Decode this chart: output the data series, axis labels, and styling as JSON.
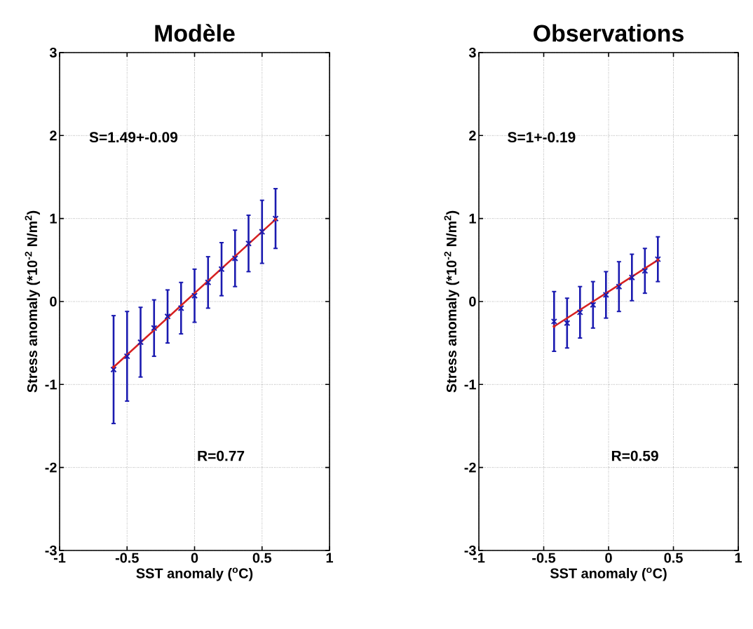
{
  "chart_data": [
    {
      "type": "scatter",
      "title": "Modèle",
      "xlabel": "SST anomaly ($^{o}$C)",
      "ylabel": "Stress anomaly (*10$^{-2}$ N/m$^{2}$)",
      "x": [
        -0.6,
        -0.5,
        -0.4,
        -0.3,
        -0.2,
        -0.1,
        0,
        0.1,
        0.2,
        0.3,
        0.4,
        0.5,
        0.6
      ],
      "xlim": [
        -1,
        1
      ],
      "ylim": [
        -3,
        3
      ],
      "xticks": [
        -1,
        -0.5,
        0,
        0.5,
        1
      ],
      "yticks": [
        -3,
        -2,
        -1,
        0,
        1,
        2,
        3
      ],
      "grid": true,
      "marker": "cross",
      "annotations": [
        "S=1.49+-0.09",
        "R=0.77"
      ],
      "series": [
        {
          "color": "#1a1ab0",
          "values": [
            -0.82,
            -0.66,
            -0.49,
            -0.32,
            -0.18,
            -0.08,
            0.07,
            0.23,
            0.39,
            0.52,
            0.7,
            0.84,
            1.0
          ],
          "errors": [
            0.65,
            0.54,
            0.42,
            0.34,
            0.32,
            0.31,
            0.32,
            0.31,
            0.32,
            0.34,
            0.34,
            0.38,
            0.36
          ]
        },
        {
          "type": "line",
          "color": "#d62020",
          "x": [
            -0.6,
            0.6
          ],
          "values": [
            -0.79,
            0.99
          ]
        }
      ]
    },
    {
      "type": "scatter",
      "title": "Observations",
      "xlabel": "SST anomaly ($^{o}$C)",
      "ylabel": "Stress anomaly (*10$^{-2}$ N/m$^{2}$)",
      "x": [
        -0.42,
        -0.32,
        -0.22,
        -0.12,
        -0.02,
        0.08,
        0.18,
        0.28,
        0.38
      ],
      "xlim": [
        -1,
        1
      ],
      "ylim": [
        -3,
        3
      ],
      "xticks": [
        -1,
        -0.5,
        0,
        0.5,
        1
      ],
      "yticks": [
        -3,
        -2,
        -1,
        0,
        1,
        2,
        3
      ],
      "grid": true,
      "marker": "cross",
      "annotations": [
        "S=1+-0.19",
        "R=0.59"
      ],
      "series": [
        {
          "color": "#1a1ab0",
          "values": [
            -0.24,
            -0.26,
            -0.13,
            -0.04,
            0.08,
            0.18,
            0.29,
            0.37,
            0.51
          ],
          "errors": [
            0.36,
            0.3,
            0.31,
            0.28,
            0.28,
            0.3,
            0.28,
            0.27,
            0.27
          ]
        },
        {
          "type": "line",
          "color": "#d62020",
          "x": [
            -0.42,
            0.38
          ],
          "values": [
            -0.3,
            0.5
          ]
        }
      ]
    }
  ]
}
